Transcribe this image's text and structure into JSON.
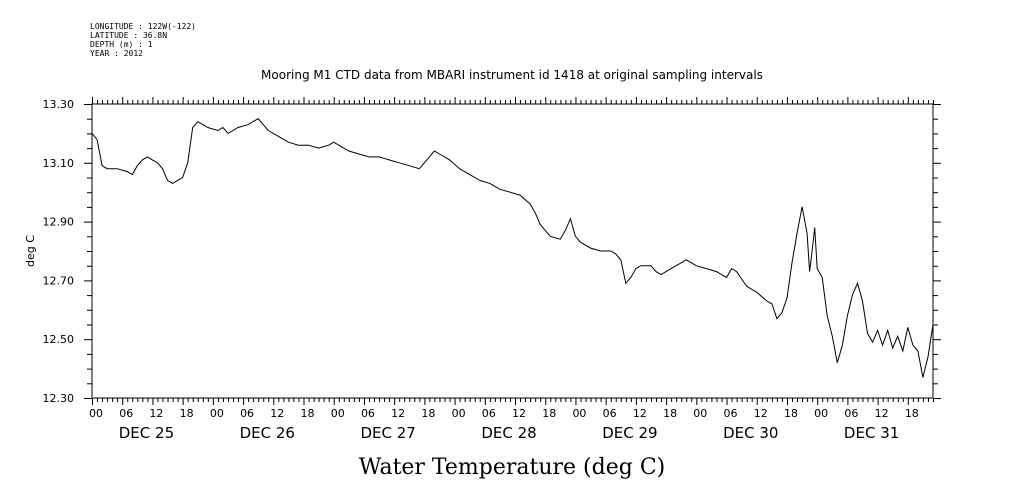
{
  "metadata_lines": [
    "LONGITUDE : 122W(-122)",
    "LATITUDE : 36.8N",
    "DEPTH (m) : 1",
    "YEAR : 2012"
  ],
  "chart_data": {
    "type": "line",
    "title": "Mooring M1 CTD data from MBARI instrument id 1418 at original sampling intervals",
    "xlabel": "Water Temperature (deg C)",
    "ylabel": "deg C",
    "x_start": "2012-12-25 00:00",
    "x_end": "2012-12-31 23:00",
    "ylim": [
      12.3,
      13.3
    ],
    "yticks": [
      "13.30",
      "13.10",
      "12.90",
      "12.70",
      "12.50",
      "12.30"
    ],
    "ytick_values": [
      13.3,
      13.1,
      12.9,
      12.7,
      12.5,
      12.3
    ],
    "xtick_hour_labels": [
      "00",
      "06",
      "12",
      "18",
      "00",
      "06",
      "12",
      "18",
      "00",
      "06",
      "12",
      "18",
      "00",
      "06",
      "12",
      "18",
      "00",
      "06",
      "12",
      "18",
      "00",
      "06",
      "12",
      "18",
      "00",
      "06",
      "12",
      "18"
    ],
    "day_labels": [
      "DEC 25",
      "DEC 26",
      "DEC 27",
      "DEC 28",
      "DEC 29",
      "DEC 30",
      "DEC 31"
    ],
    "line_color": "#000000",
    "series": [
      {
        "points": [
          [
            "2012-12-25 00:00",
            13.2
          ],
          [
            "2012-12-25 01:00",
            13.18
          ],
          [
            "2012-12-25 02:00",
            13.09
          ],
          [
            "2012-12-25 03:00",
            13.08
          ],
          [
            "2012-12-25 05:00",
            13.08
          ],
          [
            "2012-12-25 07:00",
            13.07
          ],
          [
            "2012-12-25 08:00",
            13.06
          ],
          [
            "2012-12-25 09:00",
            13.09
          ],
          [
            "2012-12-25 10:00",
            13.11
          ],
          [
            "2012-12-25 11:00",
            13.12
          ],
          [
            "2012-12-25 12:00",
            13.11
          ],
          [
            "2012-12-25 13:00",
            13.1
          ],
          [
            "2012-12-25 14:00",
            13.08
          ],
          [
            "2012-12-25 15:00",
            13.04
          ],
          [
            "2012-12-25 16:00",
            13.03
          ],
          [
            "2012-12-25 17:00",
            13.04
          ],
          [
            "2012-12-25 18:00",
            13.05
          ],
          [
            "2012-12-25 19:00",
            13.1
          ],
          [
            "2012-12-25 20:00",
            13.22
          ],
          [
            "2012-12-25 21:00",
            13.24
          ],
          [
            "2012-12-25 23:00",
            13.22
          ],
          [
            "2012-12-26 01:00",
            13.21
          ],
          [
            "2012-12-26 02:00",
            13.22
          ],
          [
            "2012-12-26 03:00",
            13.2
          ],
          [
            "2012-12-26 04:00",
            13.21
          ],
          [
            "2012-12-26 05:00",
            13.22
          ],
          [
            "2012-12-26 07:00",
            13.23
          ],
          [
            "2012-12-26 08:00",
            13.24
          ],
          [
            "2012-12-26 09:00",
            13.25
          ],
          [
            "2012-12-26 10:00",
            13.23
          ],
          [
            "2012-12-26 11:00",
            13.21
          ],
          [
            "2012-12-26 13:00",
            13.19
          ],
          [
            "2012-12-26 15:00",
            13.17
          ],
          [
            "2012-12-26 17:00",
            13.16
          ],
          [
            "2012-12-26 19:00",
            13.16
          ],
          [
            "2012-12-26 21:00",
            13.15
          ],
          [
            "2012-12-26 23:00",
            13.16
          ],
          [
            "2012-12-27 00:00",
            13.17
          ],
          [
            "2012-12-27 01:00",
            13.16
          ],
          [
            "2012-12-27 03:00",
            13.14
          ],
          [
            "2012-12-27 05:00",
            13.13
          ],
          [
            "2012-12-27 07:00",
            13.12
          ],
          [
            "2012-12-27 09:00",
            13.12
          ],
          [
            "2012-12-27 11:00",
            13.11
          ],
          [
            "2012-12-27 13:00",
            13.1
          ],
          [
            "2012-12-27 15:00",
            13.09
          ],
          [
            "2012-12-27 17:00",
            13.08
          ],
          [
            "2012-12-27 18:00",
            13.1
          ],
          [
            "2012-12-27 19:00",
            13.12
          ],
          [
            "2012-12-27 20:00",
            13.14
          ],
          [
            "2012-12-27 21:00",
            13.13
          ],
          [
            "2012-12-27 23:00",
            13.11
          ],
          [
            "2012-12-28 01:00",
            13.08
          ],
          [
            "2012-12-28 03:00",
            13.06
          ],
          [
            "2012-12-28 05:00",
            13.04
          ],
          [
            "2012-12-28 07:00",
            13.03
          ],
          [
            "2012-12-28 09:00",
            13.01
          ],
          [
            "2012-12-28 11:00",
            13.0
          ],
          [
            "2012-12-28 13:00",
            12.99
          ],
          [
            "2012-12-28 15:00",
            12.96
          ],
          [
            "2012-12-28 16:00",
            12.93
          ],
          [
            "2012-12-28 17:00",
            12.89
          ],
          [
            "2012-12-28 18:00",
            12.87
          ],
          [
            "2012-12-28 19:00",
            12.85
          ],
          [
            "2012-12-28 21:00",
            12.84
          ],
          [
            "2012-12-28 22:00",
            12.87
          ],
          [
            "2012-12-28 23:00",
            12.91
          ],
          [
            "2012-12-29 00:00",
            12.85
          ],
          [
            "2012-12-29 01:00",
            12.83
          ],
          [
            "2012-12-29 03:00",
            12.81
          ],
          [
            "2012-12-29 05:00",
            12.8
          ],
          [
            "2012-12-29 07:00",
            12.8
          ],
          [
            "2012-12-29 08:00",
            12.79
          ],
          [
            "2012-12-29 09:00",
            12.77
          ],
          [
            "2012-12-29 10:00",
            12.69
          ],
          [
            "2012-12-29 11:00",
            12.71
          ],
          [
            "2012-12-29 12:00",
            12.74
          ],
          [
            "2012-12-29 13:00",
            12.75
          ],
          [
            "2012-12-29 15:00",
            12.75
          ],
          [
            "2012-12-29 16:00",
            12.73
          ],
          [
            "2012-12-29 17:00",
            12.72
          ],
          [
            "2012-12-29 19:00",
            12.74
          ],
          [
            "2012-12-29 21:00",
            12.76
          ],
          [
            "2012-12-29 22:00",
            12.77
          ],
          [
            "2012-12-30 00:00",
            12.75
          ],
          [
            "2012-12-30 02:00",
            12.74
          ],
          [
            "2012-12-30 04:00",
            12.73
          ],
          [
            "2012-12-30 06:00",
            12.71
          ],
          [
            "2012-12-30 07:00",
            12.74
          ],
          [
            "2012-12-30 08:00",
            12.73
          ],
          [
            "2012-12-30 10:00",
            12.68
          ],
          [
            "2012-12-30 12:00",
            12.66
          ],
          [
            "2012-12-30 14:00",
            12.63
          ],
          [
            "2012-12-30 15:00",
            12.62
          ],
          [
            "2012-12-30 16:00",
            12.57
          ],
          [
            "2012-12-30 17:00",
            12.59
          ],
          [
            "2012-12-30 18:00",
            12.64
          ],
          [
            "2012-12-30 19:00",
            12.76
          ],
          [
            "2012-12-30 20:00",
            12.86
          ],
          [
            "2012-12-30 21:00",
            12.95
          ],
          [
            "2012-12-30 22:00",
            12.86
          ],
          [
            "2012-12-30 22:30",
            12.73
          ],
          [
            "2012-12-30 23:00",
            12.8
          ],
          [
            "2012-12-30 23:30",
            12.88
          ],
          [
            "2012-12-31 00:00",
            12.74
          ],
          [
            "2012-12-31 01:00",
            12.71
          ],
          [
            "2012-12-31 02:00",
            12.58
          ],
          [
            "2012-12-31 03:00",
            12.51
          ],
          [
            "2012-12-31 04:00",
            12.42
          ],
          [
            "2012-12-31 05:00",
            12.48
          ],
          [
            "2012-12-31 06:00",
            12.58
          ],
          [
            "2012-12-31 07:00",
            12.65
          ],
          [
            "2012-12-31 08:00",
            12.69
          ],
          [
            "2012-12-31 09:00",
            12.63
          ],
          [
            "2012-12-31 10:00",
            12.52
          ],
          [
            "2012-12-31 11:00",
            12.49
          ],
          [
            "2012-12-31 12:00",
            12.53
          ],
          [
            "2012-12-31 13:00",
            12.48
          ],
          [
            "2012-12-31 14:00",
            12.53
          ],
          [
            "2012-12-31 15:00",
            12.47
          ],
          [
            "2012-12-31 16:00",
            12.51
          ],
          [
            "2012-12-31 17:00",
            12.46
          ],
          [
            "2012-12-31 18:00",
            12.54
          ],
          [
            "2012-12-31 19:00",
            12.48
          ],
          [
            "2012-12-31 20:00",
            12.46
          ],
          [
            "2012-12-31 21:00",
            12.37
          ],
          [
            "2012-12-31 22:00",
            12.44
          ],
          [
            "2012-12-31 23:00",
            12.55
          ]
        ]
      }
    ]
  }
}
